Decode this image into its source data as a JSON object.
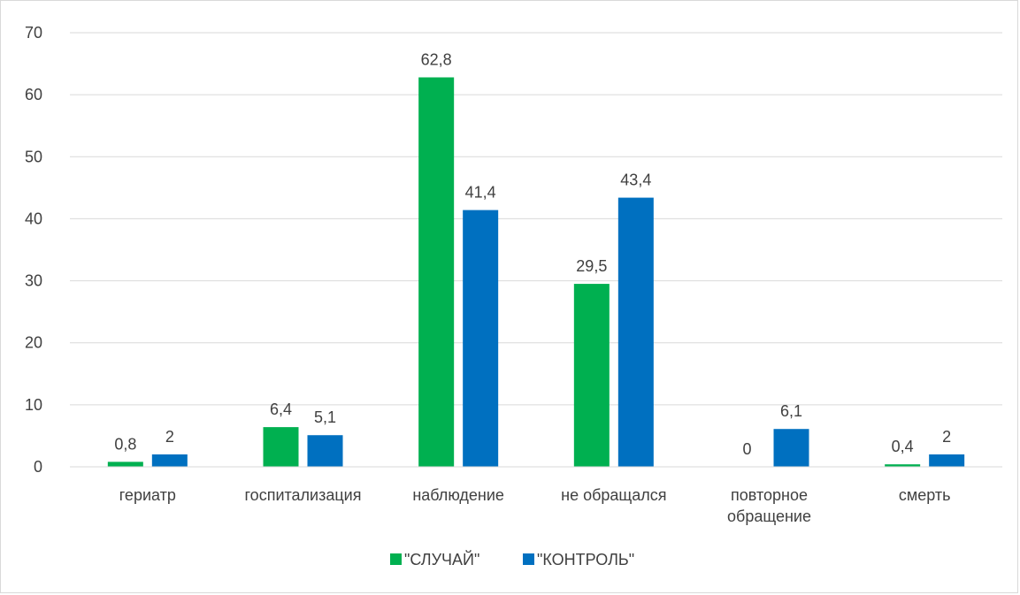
{
  "chart_data": {
    "type": "bar",
    "categories": [
      "гериатр",
      "госпитализация",
      "наблюдение",
      "не обращался",
      "повторное обращение",
      "смерть"
    ],
    "series": [
      {
        "name": "\"СЛУЧАЙ\"",
        "color": "#00b050",
        "values": [
          0.8,
          6.4,
          62.8,
          29.5,
          0,
          0.4
        ],
        "labels": [
          "0,8",
          "6,4",
          "62,8",
          "29,5",
          "0",
          "0,4"
        ]
      },
      {
        "name": "\"КОНТРОЛЬ\"",
        "color": "#0070c0",
        "values": [
          2,
          5.1,
          41.4,
          43.4,
          6.1,
          2
        ],
        "labels": [
          "2",
          "5,1",
          "41,4",
          "43,4",
          "6,1",
          "2"
        ]
      }
    ],
    "ylim": [
      0,
      70
    ],
    "yticks": [
      0,
      10,
      20,
      30,
      40,
      50,
      60,
      70
    ],
    "grid": true,
    "legend": "bottom",
    "title": "",
    "xlabel": "",
    "ylabel": ""
  }
}
